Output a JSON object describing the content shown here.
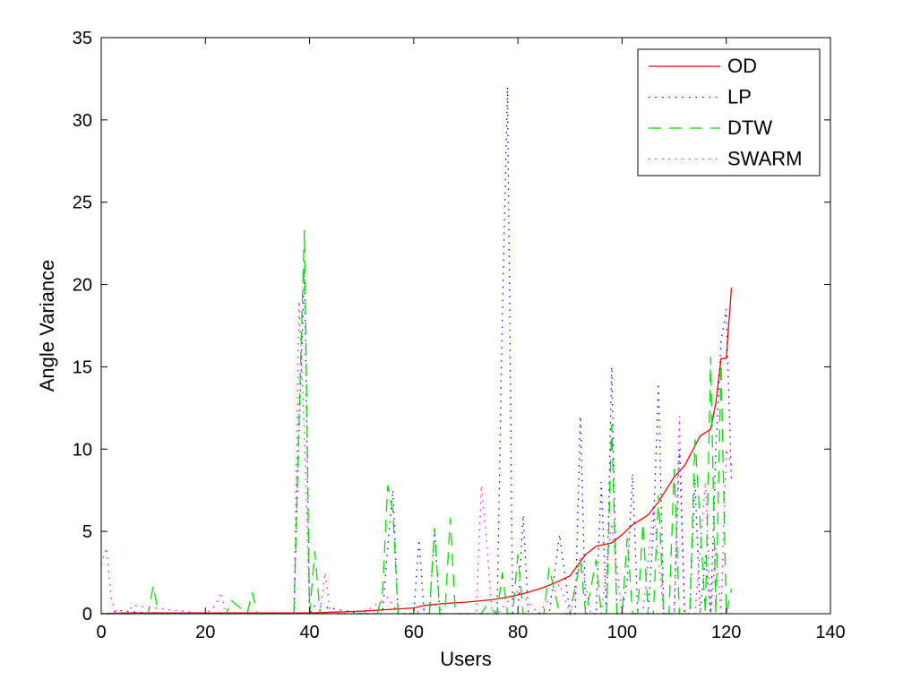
{
  "chart_data": {
    "type": "line",
    "xlabel": "Users",
    "ylabel": "Angle Variance",
    "xlim": [
      0,
      140
    ],
    "ylim": [
      0,
      35
    ],
    "xticks": [
      0,
      20,
      40,
      60,
      80,
      100,
      120,
      140
    ],
    "yticks": [
      0,
      5,
      10,
      15,
      20,
      25,
      30,
      35
    ],
    "grid": false,
    "legend_position": "top-right",
    "series": [
      {
        "name": "OD",
        "color": "#ff0000",
        "style": "solid",
        "x": [
          0,
          5,
          10,
          20,
          30,
          40,
          45,
          50,
          55,
          60,
          62,
          65,
          70,
          75,
          78,
          80,
          82,
          85,
          88,
          90,
          93,
          95,
          98,
          100,
          102,
          105,
          107,
          110,
          112,
          115,
          117,
          118,
          119,
          120,
          121
        ],
        "y": [
          0,
          0.05,
          0.05,
          0.05,
          0.05,
          0.05,
          0.1,
          0.15,
          0.25,
          0.35,
          0.5,
          0.6,
          0.7,
          0.85,
          1.0,
          1.15,
          1.3,
          1.6,
          2.0,
          2.3,
          3.6,
          4.1,
          4.3,
          4.8,
          5.4,
          6.0,
          6.8,
          8.3,
          9.0,
          10.8,
          11.2,
          12.8,
          15.5,
          15.5,
          19.8
        ]
      },
      {
        "name": "LP",
        "color": "#0000ff",
        "style": "dotted",
        "x": [
          0,
          2,
          3,
          10,
          30,
          37,
          38,
          39,
          40,
          41,
          50,
          54,
          55,
          56,
          57,
          58,
          60,
          61,
          62,
          63,
          64,
          65,
          66,
          68,
          70,
          75,
          76,
          77,
          78,
          79,
          80,
          81,
          82,
          84,
          86,
          88,
          90,
          91,
          92,
          93,
          95,
          96,
          97,
          98,
          99,
          100,
          101,
          102,
          103,
          104,
          105,
          106,
          107,
          108,
          109,
          110,
          111,
          112,
          113,
          114,
          115,
          116,
          117,
          118,
          119,
          120,
          121
        ],
        "y": [
          0,
          0,
          0.2,
          0,
          0,
          0,
          11,
          21,
          0,
          0.5,
          0,
          0,
          4,
          7.5,
          0,
          0,
          0,
          4.5,
          0,
          0,
          5.2,
          0,
          0,
          0,
          0,
          0,
          0,
          18,
          32,
          0,
          0,
          6,
          0,
          0,
          0,
          4.8,
          0,
          0,
          12,
          0,
          0,
          8,
          0,
          15,
          0,
          0,
          2,
          8.5,
          0,
          0,
          0,
          5,
          14,
          0,
          0,
          0,
          10,
          0,
          0,
          8.2,
          0,
          3.5,
          0,
          10,
          16.5,
          18.5,
          8
        ]
      },
      {
        "name": "DTW",
        "color": "#00dd00",
        "style": "dashed",
        "x": [
          0,
          5,
          9,
          10,
          11,
          20,
          24,
          25,
          28,
          29,
          30,
          37,
          38,
          39,
          40,
          41,
          42,
          43,
          50,
          53,
          54,
          55,
          56,
          57,
          60,
          63,
          64,
          65,
          66,
          67,
          68,
          70,
          73,
          74,
          76,
          77,
          78,
          79,
          80,
          81,
          82,
          85,
          86,
          88,
          89,
          90,
          92,
          93,
          94,
          95,
          96,
          97,
          98,
          99,
          100,
          101,
          102,
          103,
          104,
          105,
          106,
          107,
          108,
          109,
          110,
          111,
          112,
          113,
          114,
          115,
          116,
          117,
          118,
          119,
          120,
          121
        ],
        "y": [
          0,
          0,
          0,
          1.7,
          0,
          0,
          0,
          0.8,
          0,
          1.3,
          0,
          0,
          12,
          23.3,
          0,
          3.8,
          0,
          0,
          0,
          0,
          1.3,
          7.8,
          6.2,
          0,
          0,
          0,
          5.2,
          0,
          0,
          5.8,
          0,
          0,
          0,
          0.5,
          0,
          2.5,
          0,
          0,
          3.6,
          0,
          0,
          0,
          2.8,
          0,
          0,
          0,
          3.2,
          0,
          1.5,
          3.3,
          0,
          0,
          11.5,
          0,
          0,
          4.6,
          0,
          0,
          5.5,
          0,
          0,
          7.2,
          0,
          0,
          8.8,
          0,
          0,
          0,
          10.6,
          5.5,
          0,
          15.6,
          0,
          15.2,
          0,
          1.5
        ]
      },
      {
        "name": "SWARM",
        "color": "#ff00ff",
        "style": "dotted",
        "x": [
          0,
          1,
          2,
          3,
          5,
          6,
          20,
          22,
          23,
          24,
          36,
          37,
          38,
          39,
          40,
          42,
          43,
          44,
          46,
          50,
          55,
          57,
          60,
          64,
          66,
          68,
          70,
          72,
          73,
          74,
          75,
          76,
          80,
          84,
          88,
          90,
          92,
          94,
          96,
          98,
          100,
          102,
          104,
          106,
          108,
          110,
          111,
          112,
          114,
          116,
          117,
          118,
          119,
          120,
          121
        ],
        "y": [
          3,
          4,
          0.8,
          0,
          0,
          0.5,
          0,
          0.5,
          1.3,
          0,
          0,
          0,
          19,
          11,
          0,
          0,
          2.5,
          0,
          0,
          0,
          1,
          0,
          0,
          0.6,
          0,
          0,
          0,
          0,
          7.8,
          4.5,
          0,
          0,
          1.4,
          0,
          1.8,
          0,
          3.5,
          0,
          0,
          5.5,
          0,
          0,
          0,
          6.5,
          0,
          0,
          12,
          0,
          0,
          8,
          0,
          4,
          0,
          10,
          9
        ]
      }
    ]
  }
}
